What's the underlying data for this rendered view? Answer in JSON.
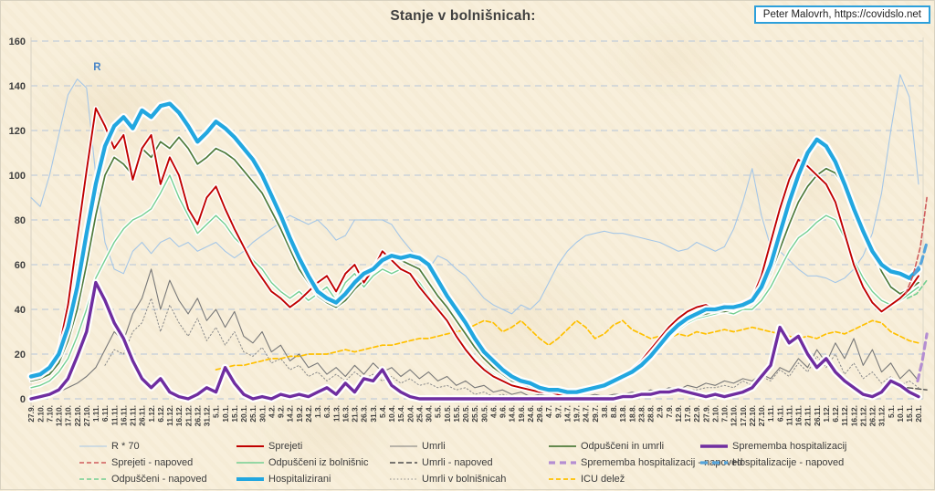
{
  "header": {
    "title": "Stanje v bolnišnicah:",
    "credit": "Peter Malovrh, https://covidslo.net"
  },
  "chart_data": {
    "type": "line",
    "title": "Stanje v bolnišnicah:",
    "ylim": [
      0,
      160
    ],
    "yticks": [
      0,
      20,
      40,
      60,
      80,
      100,
      120,
      140,
      160
    ],
    "grid": "horizontal-dashed",
    "grid_color": "#c3cdd9",
    "legend_position": "bottom",
    "background": "#f8efdb",
    "annotation": {
      "text": "R",
      "x_index": 6.35,
      "value": 147,
      "color": "#4a86c8"
    },
    "x_tick_labels": [
      "27.9.",
      "2.10.",
      "7.10.",
      "12.10.",
      "17.10.",
      "22.10.",
      "27.10.",
      "1.11.",
      "6.11.",
      "11.11.",
      "16.11.",
      "21.11.",
      "26.11.",
      "1.12.",
      "6.12.",
      "11.12.",
      "16.12.",
      "21.12.",
      "26.12.",
      "31.12.",
      "5.1.",
      "10.1.",
      "15.1.",
      "20.1.",
      "25.1.",
      "30.1.",
      "4.2.",
      "9.2.",
      "14.2.",
      "19.2.",
      "24.2.",
      "1.3.",
      "6.3.",
      "11.3.",
      "16.3.",
      "21.3.",
      "26.3.",
      "31.3.",
      "5.4.",
      "10.4.",
      "15.4.",
      "20.4.",
      "25.4.",
      "30.4.",
      "5.5.",
      "10.5.",
      "15.5.",
      "20.5.",
      "25.5.",
      "30.5.",
      "4.6.",
      "9.6.",
      "14.6.",
      "19.6.",
      "24.6.",
      "29.6.",
      "4.7.",
      "9.7.",
      "14.7.",
      "19.7.",
      "24.7.",
      "29.7.",
      "3.8.",
      "8.8.",
      "13.8.",
      "18.8.",
      "23.8.",
      "28.8.",
      "2.9.",
      "7.9.",
      "12.9.",
      "17.9.",
      "22.9.",
      "27.9.",
      "2.10.",
      "7.10.",
      "12.10.",
      "17.10.",
      "22.10.",
      "27.10.",
      "1.11.",
      "6.11.",
      "11.11.",
      "16.11.",
      "21.11.",
      "26.11.",
      "1.12.",
      "6.12.",
      "11.12.",
      "16.12.",
      "21.12.",
      "26.12.",
      "31.12.",
      "5.1.",
      "10.1.",
      "15.1.",
      "20.1."
    ],
    "series": [
      {
        "key": "r70",
        "name": "R * 70",
        "color": "#a6c7e7",
        "width": 1.1,
        "values": [
          90,
          86,
          100,
          118,
          136,
          143,
          139,
          100,
          70,
          58,
          56,
          66,
          70,
          65,
          70,
          72,
          68,
          70,
          66,
          68,
          70,
          66,
          63,
          66,
          70,
          73,
          76,
          79,
          82,
          80,
          78,
          80,
          76,
          71,
          73,
          80,
          80,
          80,
          80,
          78,
          72,
          67,
          62,
          58,
          64,
          62,
          58,
          55,
          50,
          45,
          42,
          40,
          38,
          42,
          40,
          44,
          52,
          60,
          66,
          70,
          73,
          74,
          75,
          74,
          74,
          73,
          72,
          71,
          70,
          68,
          66,
          67,
          70,
          68,
          66,
          68,
          76,
          88,
          103,
          82,
          68,
          66,
          62,
          58,
          55,
          55,
          54,
          52,
          54,
          58,
          64,
          74,
          92,
          120,
          145,
          135,
          96
        ]
      },
      {
        "key": "umrli_v_bolnisnicah",
        "name": "Umrli v bolnišnicah",
        "color": "#8b8b8b",
        "width": 1,
        "dash": "1.5 2.4",
        "values": [
          null,
          null,
          null,
          null,
          null,
          null,
          null,
          null,
          15,
          22,
          20,
          30,
          34,
          45,
          30,
          42,
          34,
          28,
          36,
          26,
          32,
          24,
          30,
          21,
          19,
          23,
          16,
          18,
          13,
          15,
          10,
          12,
          8,
          11,
          8,
          12,
          9,
          11,
          8,
          10,
          7,
          9,
          6,
          7,
          5,
          6,
          4,
          5,
          2,
          3,
          1,
          2,
          1,
          1,
          0,
          1,
          0,
          1,
          0,
          1,
          0,
          1,
          1,
          1,
          1,
          2,
          1,
          3,
          2,
          4,
          3,
          4,
          4,
          5,
          5,
          6,
          5,
          8,
          6,
          10,
          8,
          13,
          10,
          16,
          12,
          19,
          14,
          20,
          11,
          16,
          9,
          12,
          7,
          10,
          6,
          8,
          5
        ]
      },
      {
        "key": "umrli",
        "name": "Umrli",
        "color": "#787878",
        "width": 1.1,
        "values": [
          1,
          1,
          2,
          3,
          5,
          7,
          10,
          14,
          22,
          30,
          26,
          38,
          45,
          58,
          40,
          53,
          44,
          38,
          45,
          35,
          40,
          32,
          39,
          28,
          25,
          30,
          21,
          24,
          17,
          20,
          14,
          16,
          11,
          14,
          10,
          15,
          11,
          16,
          12,
          14,
          10,
          13,
          9,
          12,
          8,
          10,
          6,
          8,
          5,
          6,
          3,
          4,
          2,
          3,
          1,
          2,
          1,
          1,
          0,
          1,
          1,
          2,
          1,
          2,
          2,
          3,
          2,
          4,
          3,
          5,
          4,
          6,
          5,
          7,
          6,
          8,
          7,
          9,
          8,
          11,
          9,
          14,
          12,
          18,
          14,
          22,
          16,
          25,
          18,
          27,
          15,
          22,
          12,
          16,
          9,
          13,
          8
        ]
      },
      {
        "key": "icu",
        "name": "ICU delež",
        "color": "#ffc000",
        "width": 1.7,
        "dash": "5 3",
        "values": [
          null,
          null,
          null,
          null,
          null,
          null,
          null,
          null,
          null,
          null,
          null,
          null,
          null,
          null,
          null,
          null,
          null,
          null,
          null,
          null,
          13,
          14,
          15,
          15,
          16,
          17,
          18,
          18,
          19,
          19,
          20,
          20,
          20,
          21,
          22,
          21,
          22,
          23,
          24,
          24,
          25,
          26,
          27,
          27,
          28,
          29,
          30,
          31,
          33,
          35,
          34,
          30,
          32,
          35,
          31,
          27,
          24,
          27,
          31,
          35,
          32,
          27,
          29,
          33,
          35,
          31,
          29,
          27,
          28,
          27,
          29,
          28,
          30,
          29,
          30,
          31,
          30,
          31,
          32,
          31,
          30,
          29,
          28,
          27,
          28,
          27,
          29,
          30,
          29,
          31,
          33,
          35,
          34,
          30,
          28,
          26,
          25
        ]
      },
      {
        "key": "odpusceni_iz_bolnisnic",
        "name": "Odpuščeni iz bolnišnic",
        "color": "#74cf92",
        "width": 1.4,
        "glow": true,
        "values": [
          5,
          6,
          8,
          12,
          18,
          28,
          40,
          54,
          62,
          70,
          76,
          80,
          82,
          85,
          92,
          100,
          90,
          82,
          74,
          78,
          82,
          78,
          72,
          68,
          62,
          58,
          52,
          48,
          45,
          48,
          44,
          47,
          50,
          44,
          52,
          56,
          50,
          55,
          58,
          56,
          58,
          56,
          52,
          46,
          40,
          34,
          28,
          23,
          18,
          14,
          11,
          8,
          6,
          5,
          4,
          3,
          3,
          2,
          2,
          3,
          3,
          4,
          5,
          7,
          9,
          11,
          14,
          18,
          23,
          27,
          31,
          34,
          36,
          37,
          38,
          39,
          38,
          40,
          40,
          44,
          50,
          58,
          66,
          72,
          75,
          79,
          82,
          80,
          72,
          62,
          54,
          48,
          44,
          42,
          44,
          47,
          50
        ]
      },
      {
        "key": "odpusceni_in_umrli",
        "name": "Odpuščeni in umrli",
        "color": "#4f7b3b",
        "width": 1.7,
        "glow": true,
        "values": [
          8,
          9,
          11,
          16,
          26,
          40,
          60,
          82,
          100,
          108,
          105,
          100,
          112,
          108,
          115,
          112,
          117,
          112,
          105,
          108,
          112,
          110,
          107,
          102,
          97,
          92,
          84,
          76,
          67,
          58,
          52,
          46,
          43,
          41,
          44,
          49,
          53,
          57,
          61,
          63,
          62,
          60,
          58,
          52,
          46,
          41,
          35,
          29,
          23,
          18,
          14,
          11,
          8,
          7,
          5,
          5,
          4,
          3,
          3,
          3,
          4,
          4,
          5,
          7,
          9,
          12,
          15,
          19,
          24,
          28,
          32,
          35,
          37,
          38,
          39,
          39,
          40,
          41,
          43,
          48,
          56,
          67,
          78,
          88,
          95,
          100,
          103,
          101,
          95,
          86,
          76,
          66,
          57,
          50,
          47,
          49,
          52
        ]
      },
      {
        "key": "sprejeti",
        "name": "Sprejeti",
        "color": "#c00000",
        "width": 1.9,
        "glow": true,
        "values": [
          9,
          10,
          13,
          22,
          42,
          72,
          102,
          130,
          122,
          112,
          118,
          98,
          112,
          118,
          96,
          108,
          100,
          85,
          78,
          90,
          95,
          85,
          76,
          68,
          60,
          54,
          48,
          45,
          41,
          44,
          48,
          52,
          55,
          48,
          56,
          60,
          52,
          58,
          66,
          62,
          58,
          56,
          50,
          45,
          40,
          35,
          28,
          22,
          17,
          13,
          10,
          8,
          6,
          5,
          4,
          3,
          3,
          2,
          2,
          3,
          4,
          5,
          6,
          8,
          10,
          13,
          17,
          22,
          27,
          32,
          36,
          39,
          41,
          42,
          40,
          42,
          40,
          43,
          45,
          55,
          70,
          85,
          98,
          107,
          104,
          100,
          96,
          88,
          74,
          60,
          50,
          43,
          39,
          42,
          45,
          49,
          55
        ]
      },
      {
        "key": "hospitalizirani",
        "name": "Hospitalizirani",
        "color": "#22a7e0",
        "width": 4.3,
        "glow": true,
        "values": [
          10,
          11,
          14,
          20,
          32,
          50,
          74,
          96,
          113,
          122,
          126,
          121,
          129,
          126,
          131,
          132,
          128,
          122,
          115,
          119,
          124,
          121,
          117,
          112,
          107,
          100,
          91,
          82,
          72,
          63,
          55,
          48,
          45,
          43,
          47,
          52,
          56,
          58,
          62,
          64,
          63,
          64,
          63,
          60,
          53,
          46,
          40,
          34,
          27,
          21,
          17,
          13,
          10,
          8,
          7,
          5,
          4,
          4,
          3,
          3,
          4,
          5,
          6,
          8,
          10,
          12,
          15,
          19,
          24,
          29,
          33,
          36,
          38,
          40,
          40,
          41,
          41,
          42,
          44,
          50,
          60,
          74,
          88,
          100,
          110,
          116,
          113,
          106,
          96,
          85,
          75,
          66,
          60,
          57,
          56,
          54,
          58
        ]
      },
      {
        "key": "sprememba",
        "name": "Sprememba hospitalizacij",
        "color": "#6f2da0",
        "width": 3.4,
        "glow": true,
        "values": [
          0,
          1,
          2,
          4,
          9,
          19,
          30,
          52,
          44,
          34,
          27,
          17,
          9,
          5,
          9,
          3,
          1,
          0,
          2,
          5,
          3,
          14,
          7,
          2,
          0,
          1,
          0,
          2,
          1,
          2,
          1,
          3,
          5,
          2,
          7,
          3,
          9,
          8,
          13,
          6,
          3,
          1,
          0,
          0,
          0,
          0,
          0,
          0,
          0,
          0,
          0,
          0,
          0,
          0,
          0,
          0,
          0,
          0,
          0,
          0,
          0,
          0,
          0,
          0,
          1,
          1,
          2,
          2,
          3,
          3,
          4,
          3,
          2,
          1,
          2,
          1,
          2,
          3,
          5,
          10,
          15,
          32,
          25,
          28,
          20,
          14,
          18,
          12,
          8,
          5,
          2,
          1,
          3,
          8,
          6,
          3,
          1
        ]
      },
      {
        "key": "odpusceni_napoved",
        "name": "Odpuščeni - napoved",
        "color": "#74cf92",
        "width": 1.6,
        "dash": "5 3",
        "points": [
          [
            94.8,
            45
          ],
          [
            95.8,
            47
          ],
          [
            96.9,
            53
          ]
        ]
      },
      {
        "key": "umrli_napoved",
        "name": "Umrli - napoved",
        "color": "#4d4d4d",
        "width": 1.4,
        "dash": "6 3",
        "points": [
          [
            94.8,
            5
          ],
          [
            96.9,
            4
          ]
        ]
      },
      {
        "key": "sprejeti_napoved",
        "name": "Sprejeti - napoved",
        "color": "#cf5c5c",
        "width": 1.6,
        "dash": "5 3",
        "points": [
          [
            94.6,
            47
          ],
          [
            95.4,
            55
          ],
          [
            96.2,
            68
          ],
          [
            96.9,
            90
          ]
        ]
      },
      {
        "key": "hospitalizacije_napoved",
        "name": "Hospitalizacije - napoved",
        "color": "#55a5dc",
        "width": 3.2,
        "dash": "8 5",
        "points": [
          [
            95.6,
            56
          ],
          [
            96.3,
            61
          ],
          [
            96.9,
            70
          ]
        ]
      },
      {
        "key": "sprememba_napoved",
        "name": "Sprememba hospitalizacij - napoved",
        "color": "#b48ed2",
        "width": 3.2,
        "dash": "7 5",
        "points": [
          [
            95.9,
            8
          ],
          [
            96.4,
            17
          ],
          [
            96.9,
            29
          ]
        ]
      }
    ]
  },
  "legend": {
    "columns": [
      {
        "items": [
          "r70",
          "sprejeti_napoved",
          "odpusceni_napoved"
        ]
      },
      {
        "items": [
          "sprejeti",
          "odpusceni_iz_bolnisnic",
          "hospitalizirani"
        ]
      },
      {
        "items": [
          "umrli",
          "umrli_napoved",
          "umrli_v_bolnisnicah"
        ]
      },
      {
        "items": [
          "odpusceni_in_umrli",
          "sprememba_napoved",
          "icu"
        ]
      },
      {
        "items": [
          "sprememba",
          "hospitalizacije_napoved"
        ]
      }
    ]
  }
}
